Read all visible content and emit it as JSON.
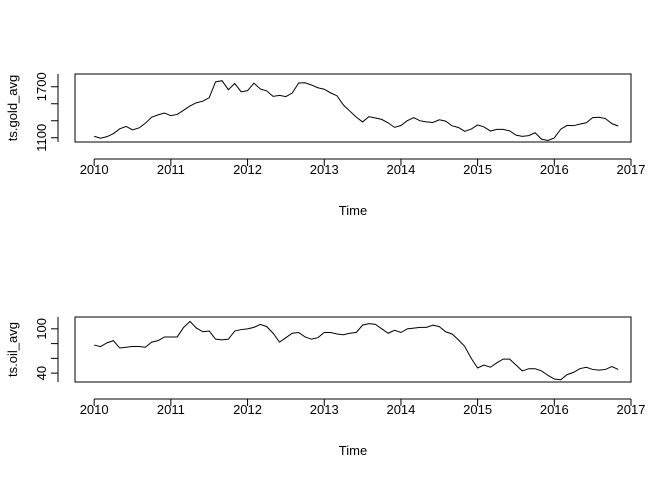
{
  "chart_data": [
    {
      "type": "line",
      "title": "",
      "xlabel": "Time",
      "ylabel": "ts.gold_avg",
      "xlim": [
        2009.75,
        2017.0
      ],
      "ylim": [
        1050,
        1850
      ],
      "x_ticks": [
        2010,
        2011,
        2012,
        2013,
        2014,
        2015,
        2016,
        2017
      ],
      "x_tick_labels": [
        "2010",
        "2011",
        "2012",
        "2013",
        "2014",
        "2015",
        "2016",
        "2017"
      ],
      "y_ticks": [
        1100,
        1700
      ],
      "y_tick_labels": [
        "1100",
        "1700"
      ],
      "series": [
        {
          "x": [
            2010.0,
            2010.083,
            2010.167,
            2010.25,
            2010.333,
            2010.417,
            2010.5,
            2010.583,
            2010.667,
            2010.75,
            2010.833,
            2010.917,
            2011.0,
            2011.083,
            2011.167,
            2011.25,
            2011.333,
            2011.417,
            2011.5,
            2011.583,
            2011.667,
            2011.75,
            2011.833,
            2011.917,
            2012.0,
            2012.083,
            2012.167,
            2012.25,
            2012.333,
            2012.417,
            2012.5,
            2012.583,
            2012.667,
            2012.75,
            2012.833,
            2012.917,
            2013.0,
            2013.083,
            2013.167,
            2013.25,
            2013.333,
            2013.417,
            2013.5,
            2013.583,
            2013.667,
            2013.75,
            2013.833,
            2013.917,
            2014.0,
            2014.083,
            2014.167,
            2014.25,
            2014.333,
            2014.417,
            2014.5,
            2014.583,
            2014.667,
            2014.75,
            2014.833,
            2014.917,
            2015.0,
            2015.083,
            2015.167,
            2015.25,
            2015.333,
            2015.417,
            2015.5,
            2015.583,
            2015.667,
            2015.75,
            2015.833,
            2015.917,
            2016.0,
            2016.083,
            2016.167,
            2016.25,
            2016.333,
            2016.417,
            2016.5,
            2016.583,
            2016.667,
            2016.75,
            2016.833
          ],
          "values": [
            1118,
            1095,
            1113,
            1148,
            1205,
            1233,
            1193,
            1215,
            1270,
            1342,
            1369,
            1391,
            1360,
            1374,
            1424,
            1474,
            1512,
            1530,
            1572,
            1758,
            1771,
            1665,
            1738,
            1640,
            1654,
            1742,
            1674,
            1651,
            1587,
            1598,
            1584,
            1626,
            1744,
            1747,
            1721,
            1688,
            1671,
            1628,
            1593,
            1485,
            1414,
            1343,
            1286,
            1348,
            1332,
            1316,
            1275,
            1222,
            1244,
            1301,
            1336,
            1299,
            1287,
            1280,
            1311,
            1296,
            1240,
            1221,
            1176,
            1202,
            1251,
            1227,
            1179,
            1199,
            1198,
            1181,
            1131,
            1117,
            1125,
            1159,
            1084,
            1068,
            1098,
            1200,
            1245,
            1242,
            1260,
            1276,
            1337,
            1341,
            1326,
            1266,
            1238
          ]
        }
      ]
    },
    {
      "type": "line",
      "title": "",
      "xlabel": "Time",
      "ylabel": "ts.oil_avg",
      "xlim": [
        2009.75,
        2017.0
      ],
      "ylim": [
        28,
        116
      ],
      "x_ticks": [
        2010,
        2011,
        2012,
        2013,
        2014,
        2015,
        2016,
        2017
      ],
      "x_tick_labels": [
        "2010",
        "2011",
        "2012",
        "2013",
        "2014",
        "2015",
        "2016",
        "2017"
      ],
      "y_ticks": [
        40,
        100
      ],
      "y_tick_labels": [
        "40",
        "100"
      ],
      "series": [
        {
          "x": [
            2010.0,
            2010.083,
            2010.167,
            2010.25,
            2010.333,
            2010.417,
            2010.5,
            2010.583,
            2010.667,
            2010.75,
            2010.833,
            2010.917,
            2011.0,
            2011.083,
            2011.167,
            2011.25,
            2011.333,
            2011.417,
            2011.5,
            2011.583,
            2011.667,
            2011.75,
            2011.833,
            2011.917,
            2012.0,
            2012.083,
            2012.167,
            2012.25,
            2012.333,
            2012.417,
            2012.5,
            2012.583,
            2012.667,
            2012.75,
            2012.833,
            2012.917,
            2013.0,
            2013.083,
            2013.167,
            2013.25,
            2013.333,
            2013.417,
            2013.5,
            2013.583,
            2013.667,
            2013.75,
            2013.833,
            2013.917,
            2014.0,
            2014.083,
            2014.167,
            2014.25,
            2014.333,
            2014.417,
            2014.5,
            2014.583,
            2014.667,
            2014.75,
            2014.833,
            2014.917,
            2015.0,
            2015.083,
            2015.167,
            2015.25,
            2015.333,
            2015.417,
            2015.5,
            2015.583,
            2015.667,
            2015.75,
            2015.833,
            2015.917,
            2016.0,
            2016.083,
            2016.167,
            2016.25,
            2016.333,
            2016.417,
            2016.5,
            2016.583,
            2016.667,
            2016.75,
            2016.833
          ],
          "values": [
            78,
            76,
            81,
            84,
            74,
            75,
            76,
            76,
            75,
            82,
            84,
            89,
            89,
            89,
            102,
            110,
            101,
            96,
            97,
            86,
            85,
            86,
            97,
            99,
            100,
            102,
            106,
            103,
            94,
            82,
            88,
            94,
            95,
            89,
            86,
            88,
            95,
            95,
            93,
            92,
            94,
            95,
            105,
            107,
            106,
            100,
            94,
            98,
            95,
            100,
            101,
            102,
            102,
            105,
            103,
            96,
            93,
            85,
            76,
            60,
            47,
            51,
            48,
            54,
            59,
            59,
            51,
            43,
            46,
            46,
            43,
            37,
            32,
            31,
            38,
            41,
            46,
            48,
            45,
            44,
            45,
            49,
            45
          ]
        }
      ]
    }
  ]
}
